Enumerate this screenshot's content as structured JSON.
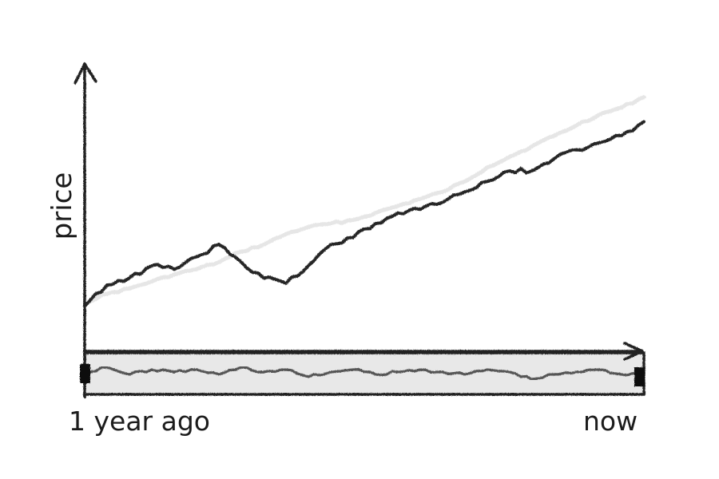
{
  "chart_data": {
    "type": "line",
    "xlabel_start": "1 year ago",
    "xlabel_end": "now",
    "ylabel": "price",
    "x": [
      0,
      0.04,
      0.08,
      0.12,
      0.16,
      0.2,
      0.24,
      0.28,
      0.32,
      0.36,
      0.4,
      0.44,
      0.48,
      0.52,
      0.56,
      0.6,
      0.64,
      0.68,
      0.72,
      0.76,
      0.8,
      0.84,
      0.88,
      0.92,
      0.96,
      1.0
    ],
    "series": [
      {
        "role": "main",
        "values": [
          3,
          15,
          19,
          26,
          24,
          31,
          38,
          28,
          19,
          16,
          26,
          38,
          42,
          50,
          56,
          58,
          62,
          68,
          74,
          80,
          80,
          87,
          92,
          96,
          100,
          108
        ]
      },
      {
        "role": "trend",
        "values": [
          5,
          10,
          13,
          17,
          21,
          24,
          28,
          34,
          38,
          44,
          48,
          50,
          52,
          56,
          60,
          64,
          68,
          74,
          82,
          88,
          94,
          100,
          106,
          112,
          116,
          122
        ]
      }
    ],
    "overview": {
      "values": [
        0,
        2,
        -1,
        1,
        0,
        1,
        -1,
        2,
        0,
        1,
        -2,
        0,
        1,
        -1,
        0,
        1,
        0,
        -1,
        1,
        0,
        -3,
        -1,
        0,
        1,
        -1,
        0
      ]
    },
    "colors": {
      "main": "#262626",
      "trend": "#e6e6e6",
      "axis": "#222222",
      "overview_fill": "#e8e8e8"
    }
  }
}
